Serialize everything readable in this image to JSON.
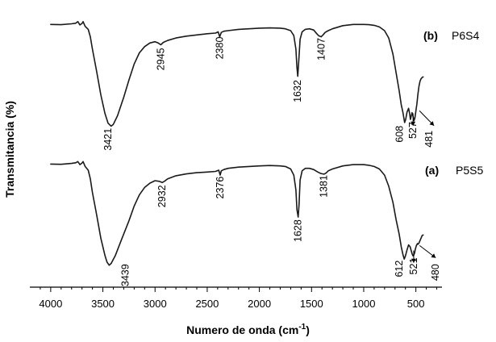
{
  "chart_data": {
    "type": "line",
    "xlabel": "Numero de onda (cm",
    "xlabel_sup": "-1",
    "xlabel_close": ")",
    "ylabel": "Transmitancia (%)",
    "xlim": [
      4200,
      250
    ],
    "x_reversed": true,
    "x_ticks": [
      4000,
      3500,
      3000,
      2500,
      2000,
      1500,
      1000,
      500
    ],
    "grid": false,
    "legend": "none",
    "y_ticks_shown": false,
    "series": [
      {
        "letter": "(b)",
        "name": "P6S4",
        "x": [
          4000,
          3900,
          3800,
          3760,
          3740,
          3720,
          3700,
          3690,
          3670,
          3640,
          3620,
          3600,
          3560,
          3520,
          3480,
          3450,
          3421,
          3400,
          3360,
          3300,
          3250,
          3200,
          3150,
          3100,
          3050,
          3000,
          2970,
          2945,
          2920,
          2880,
          2800,
          2700,
          2600,
          2500,
          2420,
          2395,
          2380,
          2365,
          2340,
          2300,
          2200,
          2100,
          2000,
          1900,
          1800,
          1750,
          1700,
          1670,
          1650,
          1640,
          1632,
          1624,
          1610,
          1590,
          1560,
          1520,
          1480,
          1450,
          1430,
          1407,
          1390,
          1370,
          1340,
          1300,
          1200,
          1100,
          1000,
          950,
          900,
          850,
          800,
          760,
          720,
          690,
          660,
          640,
          625,
          615,
          608,
          598,
          585,
          570,
          560,
          552,
          545,
          537,
          527,
          518,
          510,
          500,
          490,
          481,
          470,
          460,
          450,
          440,
          430
        ],
        "y": [
          90,
          89.8,
          90.5,
          91,
          92.3,
          89.6,
          90.8,
          92.3,
          88.4,
          86,
          80,
          70,
          52,
          33,
          18,
          10,
          7.6,
          9,
          16,
          31,
          45,
          58,
          67,
          72,
          75,
          76,
          75,
          73.5,
          75.5,
          77,
          79,
          80.5,
          81.5,
          82.5,
          83,
          84,
          80,
          83.5,
          84.5,
          85,
          86,
          86.5,
          87,
          87.2,
          87,
          86.5,
          85,
          81,
          70,
          55,
          48,
          58,
          78,
          84,
          86,
          86.5,
          85.5,
          82.5,
          80.8,
          80,
          81.5,
          83.5,
          85,
          86.5,
          89,
          90,
          90,
          89.8,
          89.3,
          88,
          85,
          79,
          66,
          51,
          36,
          25,
          19,
          14,
          10.5,
          13,
          19,
          22,
          18,
          13,
          15.5,
          18.5,
          15.5,
          12,
          14,
          20,
          26,
          33,
          40,
          44,
          46,
          47,
          47.5
        ]
      },
      {
        "letter": "(a)",
        "name": "P5S5",
        "x": [
          4000,
          3900,
          3800,
          3760,
          3740,
          3720,
          3700,
          3690,
          3670,
          3640,
          3620,
          3600,
          3560,
          3520,
          3480,
          3460,
          3439,
          3420,
          3380,
          3320,
          3250,
          3200,
          3150,
          3100,
          3050,
          3000,
          2960,
          2932,
          2910,
          2880,
          2800,
          2700,
          2600,
          2500,
          2420,
          2390,
          2376,
          2365,
          2340,
          2300,
          2200,
          2100,
          2000,
          1900,
          1800,
          1750,
          1700,
          1670,
          1650,
          1640,
          1628,
          1620,
          1610,
          1590,
          1560,
          1520,
          1480,
          1440,
          1410,
          1381,
          1360,
          1340,
          1300,
          1200,
          1100,
          1000,
          950,
          900,
          850,
          800,
          760,
          720,
          690,
          660,
          640,
          625,
          612,
          600,
          585,
          570,
          555,
          545,
          535,
          527,
          521,
          512,
          505,
          495,
          485,
          480,
          470,
          460,
          450,
          440,
          430
        ],
        "y": [
          88,
          87.8,
          88.5,
          89,
          90,
          87.5,
          88.8,
          90,
          86,
          83,
          76,
          65,
          47,
          28,
          14,
          8.5,
          6,
          7.5,
          14,
          27,
          42,
          54,
          63,
          69,
          72.5,
          74.5,
          74,
          73,
          74,
          76,
          78.5,
          80,
          81,
          81.5,
          82,
          83,
          79,
          82.5,
          83.5,
          84.5,
          85.5,
          86,
          86.5,
          86.8,
          86.5,
          86,
          84,
          79,
          67,
          51,
          45,
          55,
          75,
          82.5,
          84.5,
          84.5,
          83.5,
          81.5,
          80.3,
          79.8,
          80.8,
          82.5,
          84,
          86.5,
          87.5,
          87.5,
          87,
          86,
          84,
          79,
          70,
          57,
          43,
          31,
          21,
          15,
          11,
          13.5,
          18.5,
          22.5,
          21,
          18,
          15,
          13.5,
          14,
          16,
          19,
          22,
          23.5,
          23,
          24,
          26,
          28,
          30,
          30.5
        ]
      }
    ],
    "annotations": {
      "b": {
        "peaks": [
          "3421",
          "2945",
          "2380",
          "1632",
          "1407",
          "608",
          "527",
          "481"
        ]
      },
      "a": {
        "peaks": [
          "3439",
          "2932",
          "2376",
          "1628",
          "1381",
          "612",
          "521",
          "480"
        ]
      }
    }
  }
}
